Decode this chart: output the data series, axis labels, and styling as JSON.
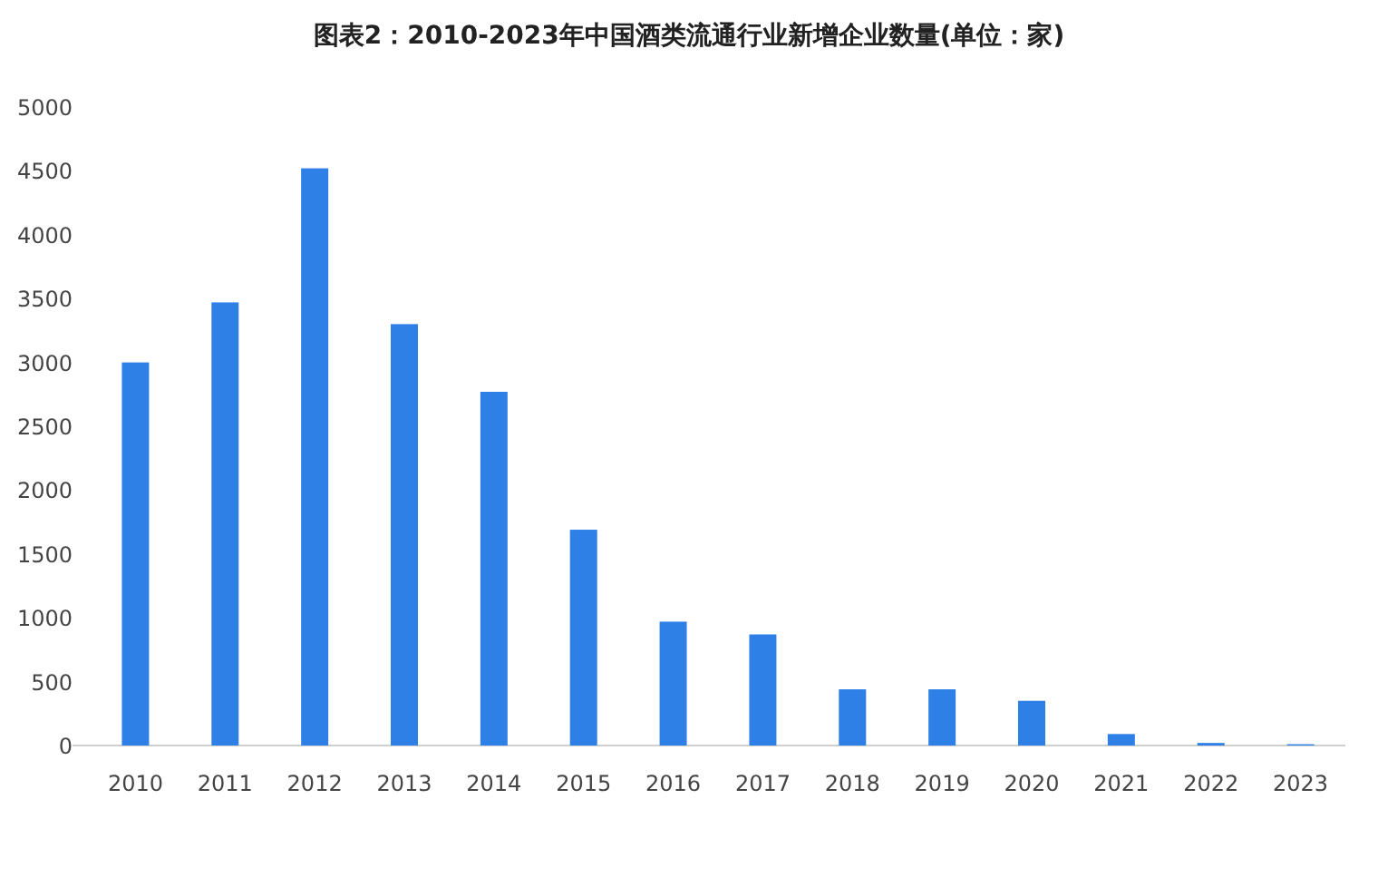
{
  "chart_data": {
    "type": "bar",
    "title": "图表2：2010-2023年中国酒类流通行业新增企业数量(单位：家)",
    "categories": [
      "2010",
      "2011",
      "2012",
      "2013",
      "2014",
      "2015",
      "2016",
      "2017",
      "2018",
      "2019",
      "2020",
      "2021",
      "2022",
      "2023"
    ],
    "values": [
      3000,
      3470,
      4520,
      3300,
      2770,
      1690,
      970,
      870,
      440,
      440,
      350,
      90,
      20,
      10
    ],
    "color": "#2f80e6",
    "ylim": [
      0,
      5000
    ],
    "yticks": [
      0,
      500,
      1000,
      1500,
      2000,
      2500,
      3000,
      3500,
      4000,
      4500,
      5000
    ],
    "grid": false
  }
}
